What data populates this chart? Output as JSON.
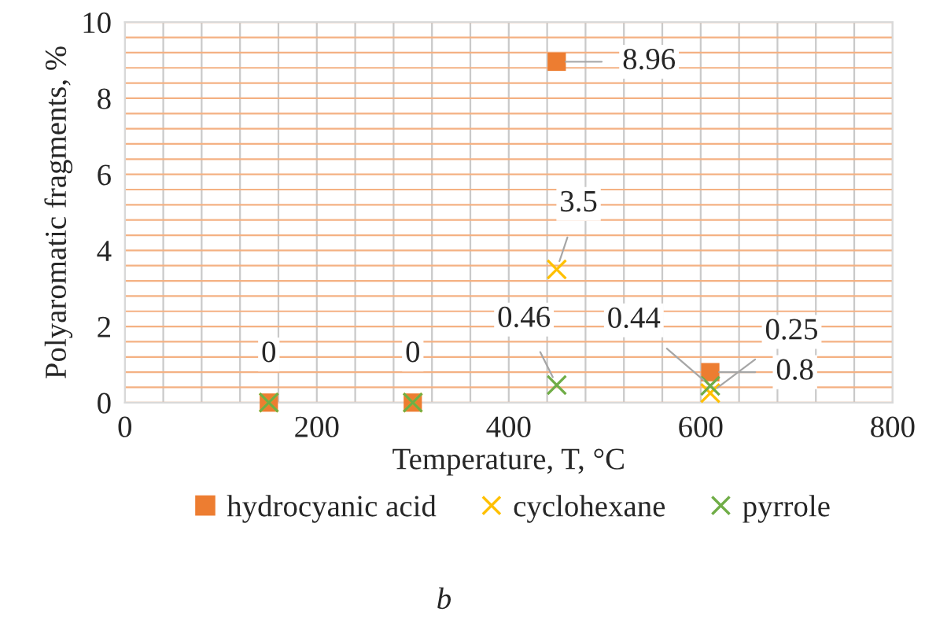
{
  "chart_data": {
    "type": "scatter",
    "xlabel": "Temperature, T, °C",
    "ylabel": "Polyaromatic fragments, %",
    "x": [
      150,
      300,
      450,
      610
    ],
    "series": [
      {
        "name": "hydrocyanic acid",
        "color": "#ed7d31",
        "marker": "square",
        "values": [
          0,
          0,
          8.96,
          0.8
        ],
        "value_labels": [
          "0",
          "0",
          "8.96",
          "0.8"
        ]
      },
      {
        "name": "cyclohexane",
        "color": "#ffc000",
        "marker": "cross",
        "values": [
          0,
          0,
          3.5,
          0.25
        ],
        "value_labels": [
          null,
          null,
          "3.5",
          "0.25"
        ]
      },
      {
        "name": "pyrrole",
        "color": "#70ad47",
        "marker": "cross",
        "values": [
          0,
          0,
          0.46,
          0.44
        ],
        "value_labels": [
          null,
          null,
          "0.46",
          "0.44"
        ]
      }
    ],
    "xlim": [
      0,
      800
    ],
    "xticks": [
      0,
      200,
      400,
      600,
      800
    ],
    "ylim": [
      0,
      10
    ],
    "yticks": [
      0,
      2,
      4,
      6,
      8,
      10
    ],
    "grid": true,
    "legend": "bottom",
    "annotations": [
      "b"
    ]
  }
}
